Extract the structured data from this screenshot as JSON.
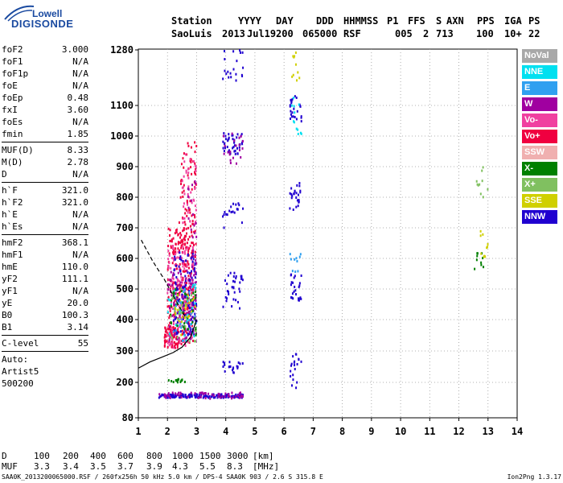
{
  "logo": {
    "line1": "Lowell",
    "line2": "DIGISONDE"
  },
  "header": {
    "labels": [
      "Station",
      "YYYY",
      "DAY",
      "DDD",
      "HHMMSS",
      "P1",
      "FFS",
      "S",
      "AXN",
      "PPS",
      "IGA",
      "PS"
    ],
    "values": [
      "SaoLuis",
      "2013",
      "Jul19",
      "200",
      "065000",
      "RSF",
      "005",
      "2",
      "713",
      "100",
      "10+",
      "22"
    ]
  },
  "params": {
    "group1": [
      {
        "name": "foF2",
        "value": "3.000"
      },
      {
        "name": "foF1",
        "value": "N/A"
      },
      {
        "name": "foF1p",
        "value": "N/A"
      },
      {
        "name": "foE",
        "value": "N/A"
      },
      {
        "name": "foEp",
        "value": "0.48"
      },
      {
        "name": "fxI",
        "value": "3.60"
      },
      {
        "name": "foEs",
        "value": "N/A"
      },
      {
        "name": "fmin",
        "value": "1.85"
      }
    ],
    "group2": [
      {
        "name": "MUF(D)",
        "value": "8.33"
      },
      {
        "name": "M(D)",
        "value": "2.78"
      },
      {
        "name": "D",
        "value": "N/A"
      }
    ],
    "group3": [
      {
        "name": "h`F",
        "value": "321.0"
      },
      {
        "name": "h`F2",
        "value": "321.0"
      },
      {
        "name": "h`E",
        "value": "N/A"
      },
      {
        "name": "h`Es",
        "value": "N/A"
      }
    ],
    "group4": [
      {
        "name": "hmF2",
        "value": "368.1"
      },
      {
        "name": "hmF1",
        "value": "N/A"
      },
      {
        "name": "hmE",
        "value": "110.0"
      },
      {
        "name": "yF2",
        "value": "111.1"
      },
      {
        "name": "yF1",
        "value": "N/A"
      },
      {
        "name": "yE",
        "value": "20.0"
      },
      {
        "name": "B0",
        "value": "100.3"
      },
      {
        "name": "B1",
        "value": "3.14"
      }
    ],
    "group5": [
      {
        "name": "C-level",
        "value": "55"
      }
    ],
    "auto": [
      "Auto:",
      "Artist5",
      "500200"
    ]
  },
  "legend": [
    {
      "label": "NoVal",
      "color": "#a8a8a8"
    },
    {
      "label": "NNE",
      "color": "#00e0f0"
    },
    {
      "label": "E",
      "color": "#30a0f0"
    },
    {
      "label": "W",
      "color": "#a000a0"
    },
    {
      "label": "Vo-",
      "color": "#f040a0"
    },
    {
      "label": "Vo+",
      "color": "#f00040"
    },
    {
      "label": "SSW",
      "color": "#f0b0b0"
    },
    {
      "label": "X-",
      "color": "#008000"
    },
    {
      "label": "X+",
      "color": "#80c060"
    },
    {
      "label": "SSE",
      "color": "#d0d000"
    },
    {
      "label": "NNW",
      "color": "#2000d0"
    }
  ],
  "muf_table": {
    "d_label": "D",
    "d_values": [
      "100",
      "200",
      "400",
      "600",
      "800",
      "1000",
      "1500",
      "3000"
    ],
    "d_unit": "[km]",
    "muf_label": "MUF",
    "muf_values": [
      "3.3",
      "3.4",
      "3.5",
      "3.7",
      "3.9",
      "4.3",
      "5.5",
      "8.3"
    ],
    "muf_unit": "[MHz]"
  },
  "footer": {
    "left": "SAA0K_2013200065000.RSF / 260fx256h 50 kHz 5.0 km / DPS-4 SAA0K 903 / 2.6 S 315.8 E",
    "right": "Ion2Png 1.3.17"
  },
  "chart_data": {
    "type": "scatter",
    "x_ticks": [
      "1",
      "2",
      "3",
      "4",
      "5",
      "6",
      "7",
      "8",
      "9",
      "10",
      "11",
      "12",
      "13",
      "14"
    ],
    "y_ticks": [
      "80",
      "200",
      "300",
      "400",
      "500",
      "600",
      "700",
      "800",
      "900",
      "1000",
      "1100",
      "1280"
    ],
    "xlim": [
      1,
      14
    ],
    "ylim": [
      80,
      1280
    ],
    "grid": true,
    "legend_position": "right",
    "series": [
      {
        "color_key": "Vo+",
        "clusters": [
          {
            "x": [
              2.0,
              2.9
            ],
            "y": [
              320,
              700
            ],
            "n": 260
          },
          {
            "x": [
              2.4,
              3.0
            ],
            "y": [
              600,
              980
            ],
            "n": 80
          },
          {
            "x": [
              1.9,
              2.4
            ],
            "y": [
              310,
              380
            ],
            "n": 60
          }
        ]
      },
      {
        "color_key": "Vo-",
        "clusters": [
          {
            "x": [
              2.0,
              2.9
            ],
            "y": [
              310,
              650
            ],
            "n": 140
          },
          {
            "x": [
              2.5,
              3.0
            ],
            "y": [
              700,
              950
            ],
            "n": 40
          }
        ]
      },
      {
        "color_key": "NNW",
        "clusters": [
          {
            "x": [
              2.2,
              3.0
            ],
            "y": [
              350,
              620
            ],
            "n": 120
          },
          {
            "x": [
              1.7,
              4.6
            ],
            "y": [
              148,
              160
            ],
            "n": 150
          },
          {
            "x": [
              3.9,
              4.6
            ],
            "y": [
              940,
              1010
            ],
            "n": 45
          },
          {
            "x": [
              3.9,
              4.6
            ],
            "y": [
              430,
              560
            ],
            "n": 35
          },
          {
            "x": [
              3.9,
              4.6
            ],
            "y": [
              230,
              270
            ],
            "n": 20
          },
          {
            "x": [
              6.2,
              6.6
            ],
            "y": [
              1040,
              1130
            ],
            "n": 25
          },
          {
            "x": [
              6.2,
              6.6
            ],
            "y": [
              750,
              850
            ],
            "n": 25
          },
          {
            "x": [
              6.2,
              6.6
            ],
            "y": [
              460,
              560
            ],
            "n": 25
          },
          {
            "x": [
              6.2,
              6.6
            ],
            "y": [
              180,
              290
            ],
            "n": 20
          },
          {
            "x": [
              3.9,
              4.6
            ],
            "y": [
              700,
              780
            ],
            "n": 20
          },
          {
            "x": [
              3.9,
              4.7
            ],
            "y": [
              1180,
              1280
            ],
            "n": 20
          }
        ]
      },
      {
        "color_key": "W",
        "clusters": [
          {
            "x": [
              2.0,
              3.0
            ],
            "y": [
              330,
              560
            ],
            "n": 80
          },
          {
            "x": [
              1.7,
              4.6
            ],
            "y": [
              145,
              165
            ],
            "n": 60
          },
          {
            "x": [
              2.7,
              3.0
            ],
            "y": [
              380,
              900
            ],
            "n": 40
          },
          {
            "x": [
              3.9,
              4.6
            ],
            "y": [
              900,
              1010
            ],
            "n": 20
          }
        ]
      },
      {
        "color_key": "NNE",
        "clusters": [
          {
            "x": [
              2.0,
              3.0
            ],
            "y": [
              330,
              520
            ],
            "n": 40
          },
          {
            "x": [
              6.2,
              6.6
            ],
            "y": [
              1000,
              1130
            ],
            "n": 12
          }
        ]
      },
      {
        "color_key": "X-",
        "clusters": [
          {
            "x": [
              2.1,
              3.0
            ],
            "y": [
              350,
              500
            ],
            "n": 40
          },
          {
            "x": [
              12.5,
              13.0
            ],
            "y": [
              520,
              620
            ],
            "n": 10
          },
          {
            "x": [
              1.9,
              2.6
            ],
            "y": [
              200,
              210
            ],
            "n": 15
          }
        ]
      },
      {
        "color_key": "X+",
        "clusters": [
          {
            "x": [
              2.1,
              3.0
            ],
            "y": [
              330,
              520
            ],
            "n": 30
          },
          {
            "x": [
              12.6,
              13.0
            ],
            "y": [
              800,
              900
            ],
            "n": 10
          }
        ]
      },
      {
        "color_key": "SSE",
        "clusters": [
          {
            "x": [
              2.2,
              3.0
            ],
            "y": [
              340,
              480
            ],
            "n": 20
          },
          {
            "x": [
              12.7,
              13.0
            ],
            "y": [
              600,
              700
            ],
            "n": 10
          },
          {
            "x": [
              6.2,
              6.6
            ],
            "y": [
              1180,
              1280
            ],
            "n": 10
          }
        ]
      },
      {
        "color_key": "E",
        "clusters": [
          {
            "x": [
              2.0,
              3.0
            ],
            "y": [
              330,
              500
            ],
            "n": 20
          },
          {
            "x": [
              6.2,
              6.6
            ],
            "y": [
              550,
              620
            ],
            "n": 10
          }
        ]
      }
    ],
    "curves": [
      {
        "style": "solid",
        "x": [
          1.0,
          1.4,
          1.8,
          2.2,
          2.5,
          2.8,
          3.0
        ],
        "y": [
          245,
          265,
          280,
          295,
          312,
          345,
          400
        ]
      },
      {
        "style": "dashed",
        "x": [
          1.1,
          1.5,
          1.9,
          2.3,
          2.6
        ],
        "y": [
          660,
          590,
          530,
          460,
          410
        ]
      }
    ]
  }
}
